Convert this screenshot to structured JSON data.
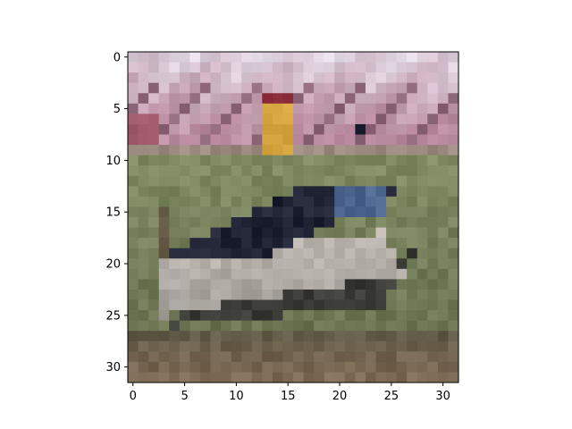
{
  "chart_data": {
    "type": "heatmap",
    "title": "",
    "xlabel": "",
    "ylabel": "",
    "xlim": [
      -0.5,
      31.5
    ],
    "ylim": [
      31.5,
      -0.5
    ],
    "grid": false,
    "x_ticks": [
      {
        "value": 0,
        "label": "0"
      },
      {
        "value": 5,
        "label": "5"
      },
      {
        "value": 10,
        "label": "10"
      },
      {
        "value": 15,
        "label": "15"
      },
      {
        "value": 20,
        "label": "20"
      },
      {
        "value": 25,
        "label": "25"
      },
      {
        "value": 30,
        "label": "30"
      }
    ],
    "y_ticks": [
      {
        "value": 0,
        "label": "0"
      },
      {
        "value": 5,
        "label": "5"
      },
      {
        "value": 10,
        "label": "10"
      },
      {
        "value": 15,
        "label": "15"
      },
      {
        "value": 20,
        "label": "20"
      },
      {
        "value": 25,
        "label": "25"
      },
      {
        "value": 30,
        "label": "30"
      }
    ],
    "image": {
      "rows": 32,
      "cols": 32,
      "content": "low-resolution photo of a rowboat on grass with a person in yellow in the background",
      "colors": {
        "sky": "#e3dce6",
        "tree_pink": "#b98a9f",
        "tree_dark": "#6e4d60",
        "person_yellow": "#d9a843",
        "person_red": "#8a2b3a",
        "grass_light": "#7f8a62",
        "grass_mid": "#6c7452",
        "grass_dark": "#5e5845",
        "boat_hull": "#a39f99",
        "boat_hull_light": "#b7b2ab",
        "boat_inside": "#1e2233",
        "boat_blue": "#4c6690",
        "boat_shadow": "#3a3a36",
        "bottom_soil": "#7d6b55"
      }
    }
  }
}
